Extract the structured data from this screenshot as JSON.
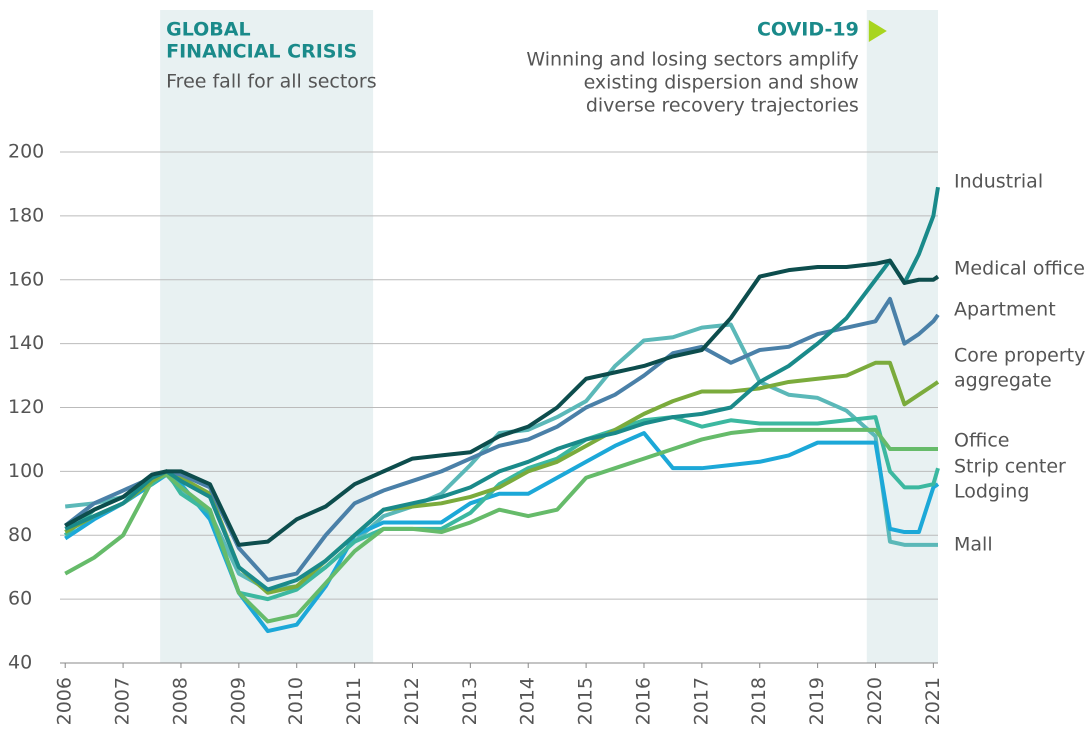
{
  "chart_data": {
    "type": "line",
    "annotations": [
      {
        "title_lines": [
          "GLOBAL",
          "FINANCIAL CRISIS"
        ],
        "text_lines": [
          "Free fall for all sectors"
        ],
        "x": [
          2007.64,
          2011.32
        ]
      },
      {
        "title_lines": [
          "COVID-19"
        ],
        "text_lines": [
          "Winning and losing sectors amplify",
          "existing dispersion and show",
          "diverse recovery trajectories"
        ],
        "x": [
          2019.85,
          2021.08
        ]
      }
    ],
    "x": [
      2006,
      2006.5,
      2007,
      2007.5,
      2007.75,
      2008,
      2008.5,
      2009,
      2009.5,
      2010,
      2010.5,
      2011,
      2011.5,
      2012,
      2012.5,
      2013,
      2013.5,
      2014,
      2014.5,
      2015,
      2015.5,
      2016,
      2016.5,
      2017,
      2017.5,
      2018,
      2018.5,
      2019,
      2019.5,
      2020,
      2020.25,
      2020.5,
      2020.75,
      2021,
      2021.08
    ],
    "series": [
      {
        "name": "Mall",
        "color": "#5bb8b8",
        "values": [
          89,
          90,
          92,
          96,
          99,
          94,
          87,
          68,
          63,
          64,
          70,
          78,
          86,
          89,
          93,
          102,
          112,
          113,
          117,
          122,
          133,
          141,
          142,
          145,
          146,
          128,
          124,
          123,
          119,
          111,
          78,
          77,
          77,
          77,
          77
        ]
      },
      {
        "name": "Lodging",
        "color": "#1ca8d8",
        "values": [
          79,
          85,
          90,
          96,
          99,
          96,
          85,
          62,
          50,
          52,
          64,
          80,
          84,
          84,
          84,
          90,
          93,
          93,
          98,
          103,
          108,
          112,
          101,
          101,
          102,
          103,
          105,
          109,
          109,
          109,
          82,
          81,
          81,
          95,
          96
        ]
      },
      {
        "name": "Strip center",
        "color": "#3cb8a0",
        "values": [
          80,
          88,
          92,
          96,
          100,
          93,
          87,
          62,
          60,
          63,
          70,
          78,
          82,
          82,
          82,
          87,
          96,
          101,
          104,
          110,
          113,
          116,
          117,
          114,
          116,
          115,
          115,
          115,
          116,
          117,
          100,
          95,
          95,
          96,
          101
        ]
      },
      {
        "name": "Office",
        "color": "#66bb6a",
        "values": [
          68,
          73,
          80,
          97,
          99,
          95,
          88,
          62,
          53,
          55,
          65,
          75,
          82,
          82,
          81,
          84,
          88,
          86,
          88,
          98,
          101,
          104,
          107,
          110,
          112,
          113,
          113,
          113,
          113,
          113,
          107,
          107,
          107,
          107,
          107
        ]
      },
      {
        "name": [
          "Core property",
          "aggregate"
        ],
        "color": "#7bab3c",
        "values": [
          81,
          86,
          90,
          97,
          100,
          98,
          93,
          70,
          62,
          64,
          72,
          80,
          88,
          89,
          90,
          92,
          95,
          100,
          103,
          108,
          113,
          118,
          122,
          125,
          125,
          126,
          128,
          129,
          130,
          134,
          134,
          121,
          124,
          127,
          128
        ]
      },
      {
        "name": "Apartment",
        "color": "#4a80a8",
        "values": [
          83,
          90,
          94,
          98,
          100,
          99,
          95,
          76,
          66,
          68,
          80,
          90,
          94,
          97,
          100,
          104,
          108,
          110,
          114,
          120,
          124,
          130,
          137,
          139,
          134,
          138,
          139,
          143,
          145,
          147,
          154,
          140,
          143,
          147,
          149
        ]
      },
      {
        "name": "Industrial",
        "color": "#1a8a8a",
        "values": [
          82,
          86,
          90,
          98,
          100,
          97,
          92,
          70,
          63,
          66,
          72,
          80,
          88,
          90,
          92,
          95,
          100,
          103,
          107,
          110,
          112,
          115,
          117,
          118,
          120,
          128,
          133,
          140,
          148,
          160,
          166,
          159,
          168,
          180,
          189
        ]
      },
      {
        "name": "Medical office",
        "color": "#0d4d4d",
        "values": [
          83,
          88,
          92,
          99,
          100,
          100,
          96,
          77,
          78,
          85,
          89,
          96,
          100,
          104,
          105,
          106,
          111,
          114,
          120,
          129,
          131,
          133,
          136,
          138,
          148,
          161,
          163,
          164,
          164,
          165,
          166,
          159,
          160,
          160,
          161
        ]
      }
    ],
    "xlim": [
      2005.91,
      2021.08
    ],
    "xticks": [
      2006,
      2007,
      2008,
      2009,
      2010,
      2011,
      2012,
      2013,
      2014,
      2015,
      2016,
      2017,
      2018,
      2019,
      2020,
      2021
    ],
    "ylim": [
      40,
      200
    ],
    "yticks": [
      40,
      60,
      80,
      100,
      120,
      140,
      160,
      180,
      200
    ],
    "grid": true
  }
}
